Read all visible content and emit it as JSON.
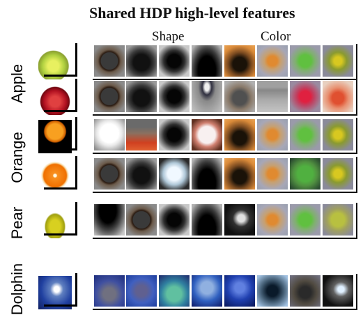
{
  "title": "Shared HDP high-level features",
  "columns": {
    "shape_label": "Shape",
    "color_label": "Color"
  },
  "groups": [
    {
      "label": "Apple",
      "rows": [
        {
          "photo": "green-apple",
          "features": [
            "dark-circle",
            "dark-blob",
            "dark-ring-blob",
            "dark-bottom",
            "orange-dark",
            "orange-blob",
            "green-blob",
            "yellow-blob"
          ]
        },
        {
          "photo": "red-apple",
          "features": [
            "dark-circle",
            "dark-blob",
            "dark-ring-blob",
            "arc-top",
            "dark-square",
            "gray-top",
            "red-blob",
            "orange-red-blob"
          ]
        }
      ]
    },
    {
      "label": "Orange",
      "rows": [
        {
          "photo": "orange-whole",
          "features": [
            "white-blob",
            "red-bottom",
            "dark-ring-blob",
            "white-square",
            "orange-dark",
            "orange-blob",
            "green-blob",
            "yellow-blob"
          ]
        },
        {
          "photo": "orange-slice",
          "features": [
            "dark-circle",
            "dark-blob",
            "white-blue-blob",
            "dark-bottom",
            "orange-dark",
            "orange-blob",
            "green-speckle",
            "yellow-blob"
          ]
        }
      ]
    },
    {
      "label": "Pear",
      "rows": [
        {
          "photo": "pear",
          "features": [
            "dark-top",
            "dark-circle",
            "dark-ring-blob",
            "dark-bottom",
            "dark-glare",
            "orange-blob",
            "green-blob",
            "yellow-speckle"
          ]
        }
      ]
    },
    {
      "label": "Dolphin",
      "rows": [
        {
          "photo": "dolphin",
          "features": [
            "blue-murky",
            "blue-murky2",
            "teal-murky",
            "blue-light",
            "blue-deep",
            "dark-teal-glow",
            "dark-murky",
            "dark-arc"
          ]
        }
      ]
    }
  ],
  "colors": {
    "background": "#ffffff",
    "frame": "#000000"
  }
}
